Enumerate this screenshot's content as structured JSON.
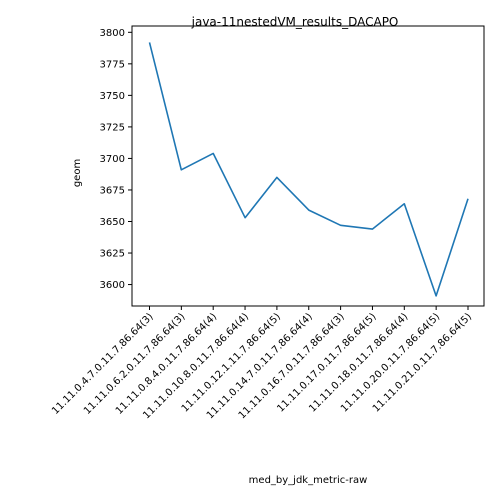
{
  "chart_data": {
    "type": "line",
    "title": "java-11nestedVM_results_DACAPO",
    "xlabel": "med_by_jdk_metric-raw",
    "ylabel": "geom",
    "categories": [
      "11.11.0.4.7.0.11.7.86.64(3)",
      "11.11.0.6.2.0.11.7.86.64(3)",
      "11.11.0.8.4.0.11.7.86.64(4)",
      "11.11.0.10.8.0.11.7.86.64(4)",
      "11.11.0.12.1.11.7.86.64(5)",
      "11.11.0.14.7.0.11.7.86.64(4)",
      "11.11.0.16.7.0.11.7.86.64(3)",
      "11.11.0.17.0.11.7.86.64(5)",
      "11.11.0.18.0.11.7.86.64(4)",
      "11.11.0.20.0.11.7.86.64(5)",
      "11.11.0.21.0.11.7.86.64(5)"
    ],
    "series": [
      {
        "values": [
          3792,
          3691,
          3704,
          3653,
          3685,
          3659,
          3647,
          3644,
          3664,
          3591,
          3668
        ]
      }
    ],
    "ylim": [
      3583,
      3805
    ],
    "yticks": [
      3600,
      3625,
      3650,
      3675,
      3700,
      3725,
      3750,
      3775,
      3800
    ],
    "grid": false,
    "legend": false,
    "line_color": "#1f77b4"
  }
}
